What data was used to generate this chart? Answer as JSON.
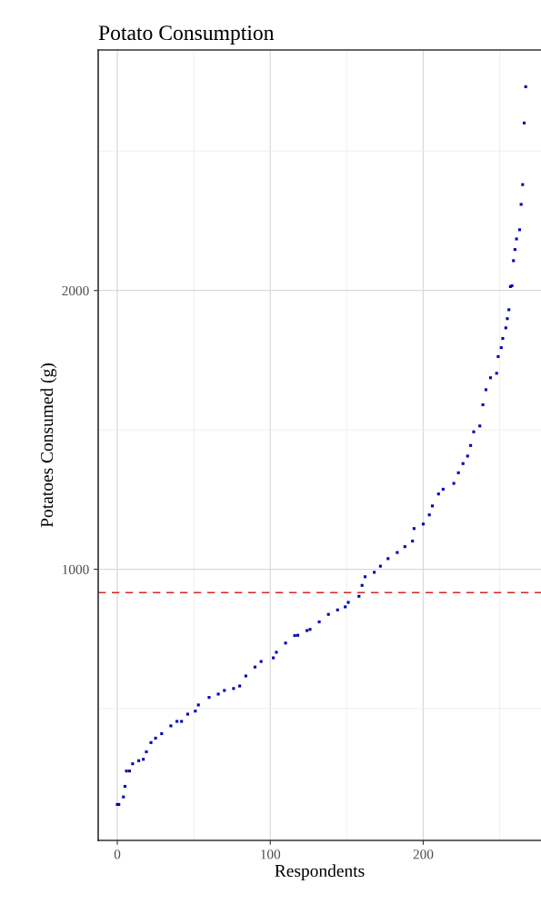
{
  "chart_data": {
    "type": "scatter",
    "title": "Potato Consumption",
    "xlabel": "Respondents",
    "ylabel": "Potatoes Consumed (g)",
    "x": [
      0,
      1,
      4,
      5,
      6,
      8,
      10,
      14,
      17,
      19,
      22,
      25,
      29,
      35,
      39,
      42,
      46,
      51,
      53,
      60,
      66,
      70,
      76,
      80,
      84,
      90,
      94,
      102,
      104,
      110,
      116,
      118,
      124,
      126,
      132,
      138,
      144,
      149,
      151,
      158,
      160,
      162,
      168,
      172,
      177,
      183,
      188,
      193,
      194,
      200,
      204,
      206,
      210,
      213,
      220,
      223,
      226,
      229,
      231,
      233,
      237,
      239,
      241,
      244,
      248,
      249,
      251,
      252,
      254,
      255,
      256,
      257,
      258,
      259,
      260,
      261,
      263,
      264,
      265,
      266,
      267
    ],
    "values": [
      156,
      156,
      183,
      221,
      276,
      276,
      302,
      313,
      318,
      345,
      378,
      394,
      410,
      438,
      454,
      454,
      480,
      491,
      513,
      540,
      552,
      565,
      572,
      581,
      617,
      649,
      669,
      682,
      702,
      735,
      762,
      763,
      780,
      784,
      811,
      838,
      854,
      865,
      881,
      903,
      942,
      973,
      989,
      1011,
      1038,
      1060,
      1081,
      1101,
      1146,
      1162,
      1195,
      1227,
      1270,
      1287,
      1308,
      1346,
      1379,
      1406,
      1444,
      1493,
      1514,
      1590,
      1644,
      1687,
      1703,
      1763,
      1795,
      1828,
      1866,
      1899,
      1931,
      2014,
      2017,
      2107,
      2147,
      2185,
      2218,
      2309,
      2380,
      2601,
      2731
    ],
    "color": "#0000b3",
    "marker": "square",
    "xlim": [
      -12.5,
      277
    ],
    "ylim": [
      27,
      2863
    ],
    "xticks": [
      0,
      100,
      200
    ],
    "yticks": [
      1000,
      2000
    ],
    "grid": true,
    "ref_lines": [
      {
        "axis": "y",
        "value": 916,
        "color": "#d62728",
        "line_style": "dashed"
      }
    ]
  }
}
